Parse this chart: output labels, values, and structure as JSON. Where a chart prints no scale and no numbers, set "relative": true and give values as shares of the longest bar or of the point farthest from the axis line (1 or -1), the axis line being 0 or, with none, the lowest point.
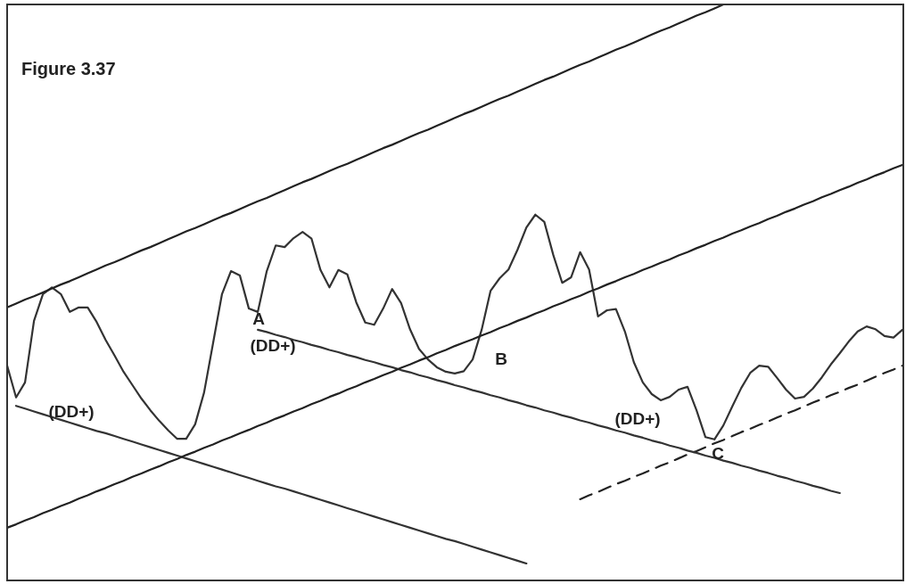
{
  "chart_data": {
    "type": "line",
    "title": "Figure 3.37",
    "relative": true,
    "grid": false,
    "legend": false,
    "marker": "none",
    "categories": [
      null,
      null,
      null,
      null,
      null,
      null,
      null,
      null,
      null,
      null,
      null,
      null,
      null,
      null,
      null,
      null,
      null,
      null,
      null,
      null,
      null,
      null,
      null,
      null,
      null,
      null,
      null,
      null,
      null,
      null,
      null,
      null,
      null,
      null,
      null,
      null,
      null,
      null,
      null,
      null,
      null,
      null,
      null,
      null,
      null,
      null,
      null,
      null,
      null,
      null,
      null,
      null,
      null,
      null,
      null,
      null,
      null,
      null,
      null,
      null,
      null,
      null,
      null,
      null,
      null,
      null,
      null,
      null,
      null,
      null,
      null,
      null,
      null,
      null,
      null,
      null,
      null,
      null,
      null,
      null,
      null,
      null,
      null,
      null,
      null,
      null,
      null,
      null,
      null,
      null,
      null,
      null,
      null,
      null,
      null,
      null,
      null,
      null,
      null,
      null,
      null
    ],
    "series": [
      {
        "color": "#222222",
        "values": [
          0.458,
          0.465,
          0.472,
          0.478,
          0.485,
          0.492,
          0.499,
          0.505,
          0.512,
          0.519,
          0.526,
          0.533,
          0.539,
          0.546,
          0.553,
          0.56,
          0.566,
          0.573,
          0.58,
          0.587,
          0.594,
          0.6,
          0.607,
          0.614,
          0.621,
          0.627,
          0.634,
          0.641,
          0.648,
          0.654,
          0.661,
          0.668,
          0.675,
          0.682,
          0.688,
          0.695,
          0.702,
          0.709,
          0.715,
          0.722,
          0.729,
          0.736,
          0.743,
          0.749,
          0.756,
          0.763,
          0.77,
          0.776,
          0.783,
          0.79,
          0.797,
          0.804,
          0.81,
          0.817,
          0.824,
          0.831,
          0.837,
          0.844,
          0.851,
          0.858,
          0.865,
          0.871,
          0.878,
          0.885,
          0.892,
          0.898,
          0.905,
          0.912,
          0.919,
          0.925,
          0.932,
          0.939,
          0.946,
          0.953,
          0.959,
          0.966,
          0.973,
          0.98,
          0.986,
          0.993,
          1,
          null,
          null,
          null,
          null,
          null,
          null,
          null,
          null,
          null,
          null,
          null,
          null,
          null,
          null,
          null,
          null,
          null,
          null,
          null,
          null
        ]
      },
      {
        "color": "#222222",
        "values": [
          0.064,
          0.07,
          0.077,
          0.083,
          0.09,
          0.096,
          0.103,
          0.109,
          0.116,
          0.122,
          0.129,
          0.135,
          0.142,
          0.148,
          0.155,
          0.161,
          0.168,
          0.174,
          0.181,
          0.187,
          0.194,
          0.2,
          0.207,
          0.213,
          0.22,
          0.226,
          0.233,
          0.239,
          0.246,
          0.252,
          0.259,
          0.265,
          0.272,
          0.278,
          0.285,
          0.291,
          0.298,
          0.304,
          0.311,
          0.317,
          0.324,
          0.33,
          0.337,
          0.343,
          0.35,
          0.356,
          0.363,
          0.369,
          0.376,
          0.382,
          0.389,
          0.395,
          0.401,
          0.408,
          0.414,
          0.421,
          0.427,
          0.434,
          0.44,
          0.447,
          0.453,
          0.46,
          0.466,
          0.473,
          0.479,
          0.486,
          0.492,
          0.499,
          0.505,
          0.512,
          0.518,
          0.525,
          0.531,
          0.538,
          0.544,
          0.551,
          0.557,
          0.564,
          0.57,
          0.577,
          0.583,
          0.59,
          0.596,
          0.603,
          0.609,
          0.616,
          0.622,
          0.629,
          0.635,
          0.642,
          0.648,
          0.655,
          0.661,
          0.668,
          0.674,
          0.681,
          0.687,
          0.694,
          0.7,
          0.707,
          0.713
        ]
      },
      {
        "color": "#333333",
        "values": [
          null,
          0.282,
          0.277,
          0.272,
          0.267,
          0.262,
          0.257,
          0.252,
          0.247,
          0.242,
          0.237,
          0.233,
          0.228,
          0.223,
          0.218,
          0.213,
          0.208,
          0.203,
          0.198,
          0.193,
          0.188,
          0.183,
          0.178,
          0.173,
          0.168,
          0.163,
          0.158,
          0.153,
          0.148,
          0.143,
          0.138,
          0.134,
          0.129,
          0.124,
          0.119,
          0.114,
          0.109,
          0.104,
          0.099,
          0.094,
          0.089,
          0.084,
          0.079,
          0.074,
          0.069,
          0.064,
          0.059,
          0.054,
          0.049,
          0.044,
          0.04,
          0.035,
          0.03,
          0.025,
          0.02,
          0.015,
          0.01,
          0.005,
          0,
          null,
          null,
          null,
          null,
          null,
          null,
          null,
          null,
          null,
          null,
          null,
          null,
          null,
          null,
          null,
          null,
          null,
          null,
          null,
          null,
          null,
          null,
          null,
          null,
          null,
          null,
          null,
          null,
          null,
          null,
          null,
          null,
          null,
          null,
          null,
          null,
          null,
          null,
          null,
          null,
          null,
          null
        ]
      },
      {
        "color": "#333333",
        "values": [
          null,
          null,
          null,
          null,
          null,
          null,
          null,
          null,
          null,
          null,
          null,
          null,
          null,
          null,
          null,
          null,
          null,
          null,
          null,
          null,
          null,
          null,
          null,
          null,
          null,
          null,
          null,
          null,
          0.418,
          0.414,
          0.409,
          0.405,
          0.4,
          0.396,
          0.391,
          0.387,
          0.382,
          0.378,
          0.373,
          0.369,
          0.364,
          0.36,
          0.355,
          0.351,
          0.346,
          0.342,
          0.337,
          0.333,
          0.328,
          0.324,
          0.319,
          0.315,
          0.31,
          0.306,
          0.301,
          0.297,
          0.292,
          0.288,
          0.283,
          0.279,
          0.274,
          0.27,
          0.265,
          0.261,
          0.256,
          0.252,
          0.247,
          0.243,
          0.238,
          0.234,
          0.229,
          0.225,
          0.22,
          0.216,
          0.211,
          0.207,
          0.202,
          0.198,
          0.193,
          0.189,
          0.184,
          0.18,
          0.175,
          0.171,
          0.166,
          0.162,
          0.157,
          0.153,
          0.148,
          0.144,
          0.139,
          0.135,
          0.13,
          0.126,
          null,
          null,
          null,
          null,
          null,
          null,
          null
        ]
      },
      {
        "color": "#222222",
        "line_style": "dashed",
        "values": [
          null,
          null,
          null,
          null,
          null,
          null,
          null,
          null,
          null,
          null,
          null,
          null,
          null,
          null,
          null,
          null,
          null,
          null,
          null,
          null,
          null,
          null,
          null,
          null,
          null,
          null,
          null,
          null,
          null,
          null,
          null,
          null,
          null,
          null,
          null,
          null,
          null,
          null,
          null,
          null,
          null,
          null,
          null,
          null,
          null,
          null,
          null,
          null,
          null,
          null,
          null,
          null,
          null,
          null,
          null,
          null,
          null,
          null,
          null,
          null,
          null,
          null,
          null,
          null,
          0.115,
          0.122,
          0.128,
          0.135,
          0.142,
          0.148,
          0.155,
          0.161,
          0.168,
          0.175,
          0.181,
          0.188,
          0.195,
          0.201,
          0.208,
          0.215,
          0.221,
          0.228,
          0.235,
          0.241,
          0.248,
          0.254,
          0.261,
          0.268,
          0.274,
          0.281,
          0.288,
          0.294,
          0.301,
          0.307,
          0.314,
          0.32,
          0.327,
          0.334,
          0.341,
          0.347,
          0.354
        ]
      },
      {
        "color": "#333333",
        "values": [
          0.354,
          0.297,
          0.324,
          0.434,
          0.482,
          0.494,
          0.482,
          0.45,
          0.458,
          0.458,
          0.432,
          0.4,
          0.372,
          0.343,
          0.319,
          0.295,
          0.274,
          0.255,
          0.238,
          0.223,
          0.223,
          0.249,
          0.306,
          0.394,
          0.482,
          0.523,
          0.515,
          0.456,
          0.45,
          0.523,
          0.569,
          0.566,
          0.582,
          0.593,
          0.581,
          0.525,
          0.494,
          0.525,
          0.517,
          0.467,
          0.431,
          0.427,
          0.456,
          0.491,
          0.466,
          0.419,
          0.384,
          0.365,
          0.351,
          0.343,
          0.34,
          0.344,
          0.365,
          0.418,
          0.488,
          0.51,
          0.526,
          0.561,
          0.601,
          0.624,
          0.611,
          0.552,
          0.502,
          0.512,
          0.557,
          0.526,
          0.442,
          0.453,
          0.455,
          0.415,
          0.36,
          0.324,
          0.303,
          0.292,
          0.298,
          0.311,
          0.316,
          0.274,
          0.226,
          0.222,
          0.247,
          0.281,
          0.314,
          0.341,
          0.354,
          0.352,
          0.332,
          0.311,
          0.295,
          0.298,
          0.313,
          0.333,
          0.356,
          0.376,
          0.397,
          0.415,
          0.424,
          0.419,
          0.407,
          0.404,
          0.418
        ]
      }
    ],
    "annotations": [
      "A",
      "(DD+)",
      "B",
      "(DD+)",
      "(DD+)",
      "C"
    ]
  }
}
